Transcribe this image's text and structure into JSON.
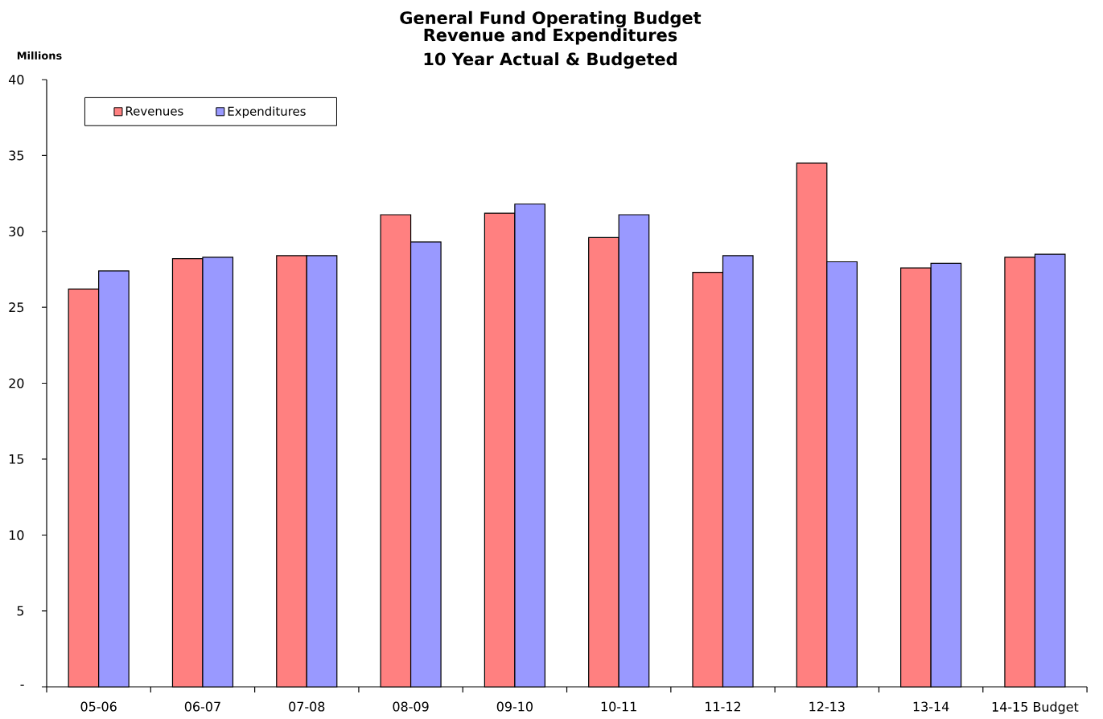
{
  "chart_data": {
    "type": "bar",
    "title": "General Fund Operating Budget",
    "subtitle": "Revenue and Expenditures 10 Year Actual & Budgeted",
    "ylabel": "Millions",
    "categories": [
      "05-06",
      "06-07",
      "07-08",
      "08-09",
      "09-10",
      "10-11",
      "11-12",
      "12-13",
      "13-14",
      "14-15 Budget"
    ],
    "series": [
      {
        "name": "Revenues",
        "color": "#ff8080",
        "values": [
          26.2,
          28.2,
          28.4,
          31.1,
          31.2,
          29.6,
          27.3,
          34.5,
          27.6,
          28.3
        ]
      },
      {
        "name": "Expenditures",
        "color": "#9999ff",
        "values": [
          27.4,
          28.3,
          28.4,
          29.3,
          31.8,
          31.1,
          28.4,
          28.0,
          27.9,
          28.5
        ]
      }
    ],
    "ylim": [
      0,
      40
    ],
    "yticks": [
      {
        "value": 0,
        "label": "-"
      },
      5,
      10,
      15,
      20,
      25,
      30,
      35,
      40
    ],
    "legend": "top left"
  }
}
